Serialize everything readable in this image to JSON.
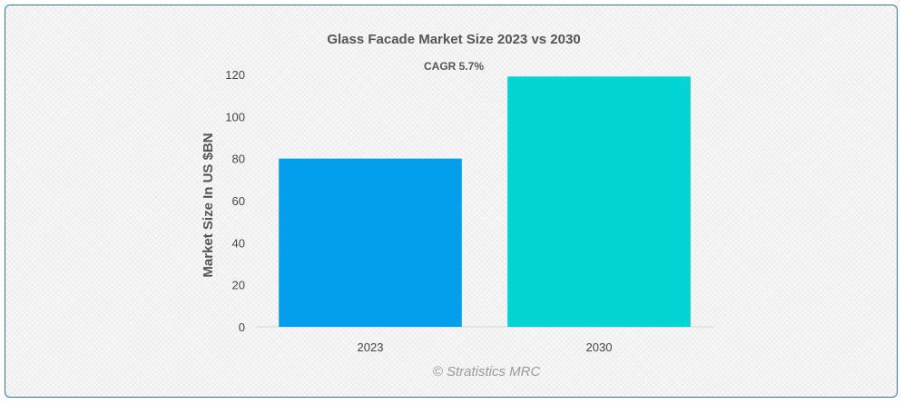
{
  "chart_data": {
    "type": "bar",
    "title": "Glass Facade Market Size 2023 vs 2030",
    "ylabel": "Market Size In US $BN",
    "xlabel": "",
    "categories": [
      "2023",
      "2030"
    ],
    "values": [
      80,
      119
    ],
    "colors": [
      "#049fec",
      "#02d3d3"
    ],
    "ylim": [
      0,
      120
    ],
    "yticks": [
      "0",
      "20",
      "40",
      "60",
      "80",
      "100",
      "120"
    ],
    "grid": false,
    "annotation": "CAGR 5.7%"
  },
  "credit": "© Stratistics MRC"
}
